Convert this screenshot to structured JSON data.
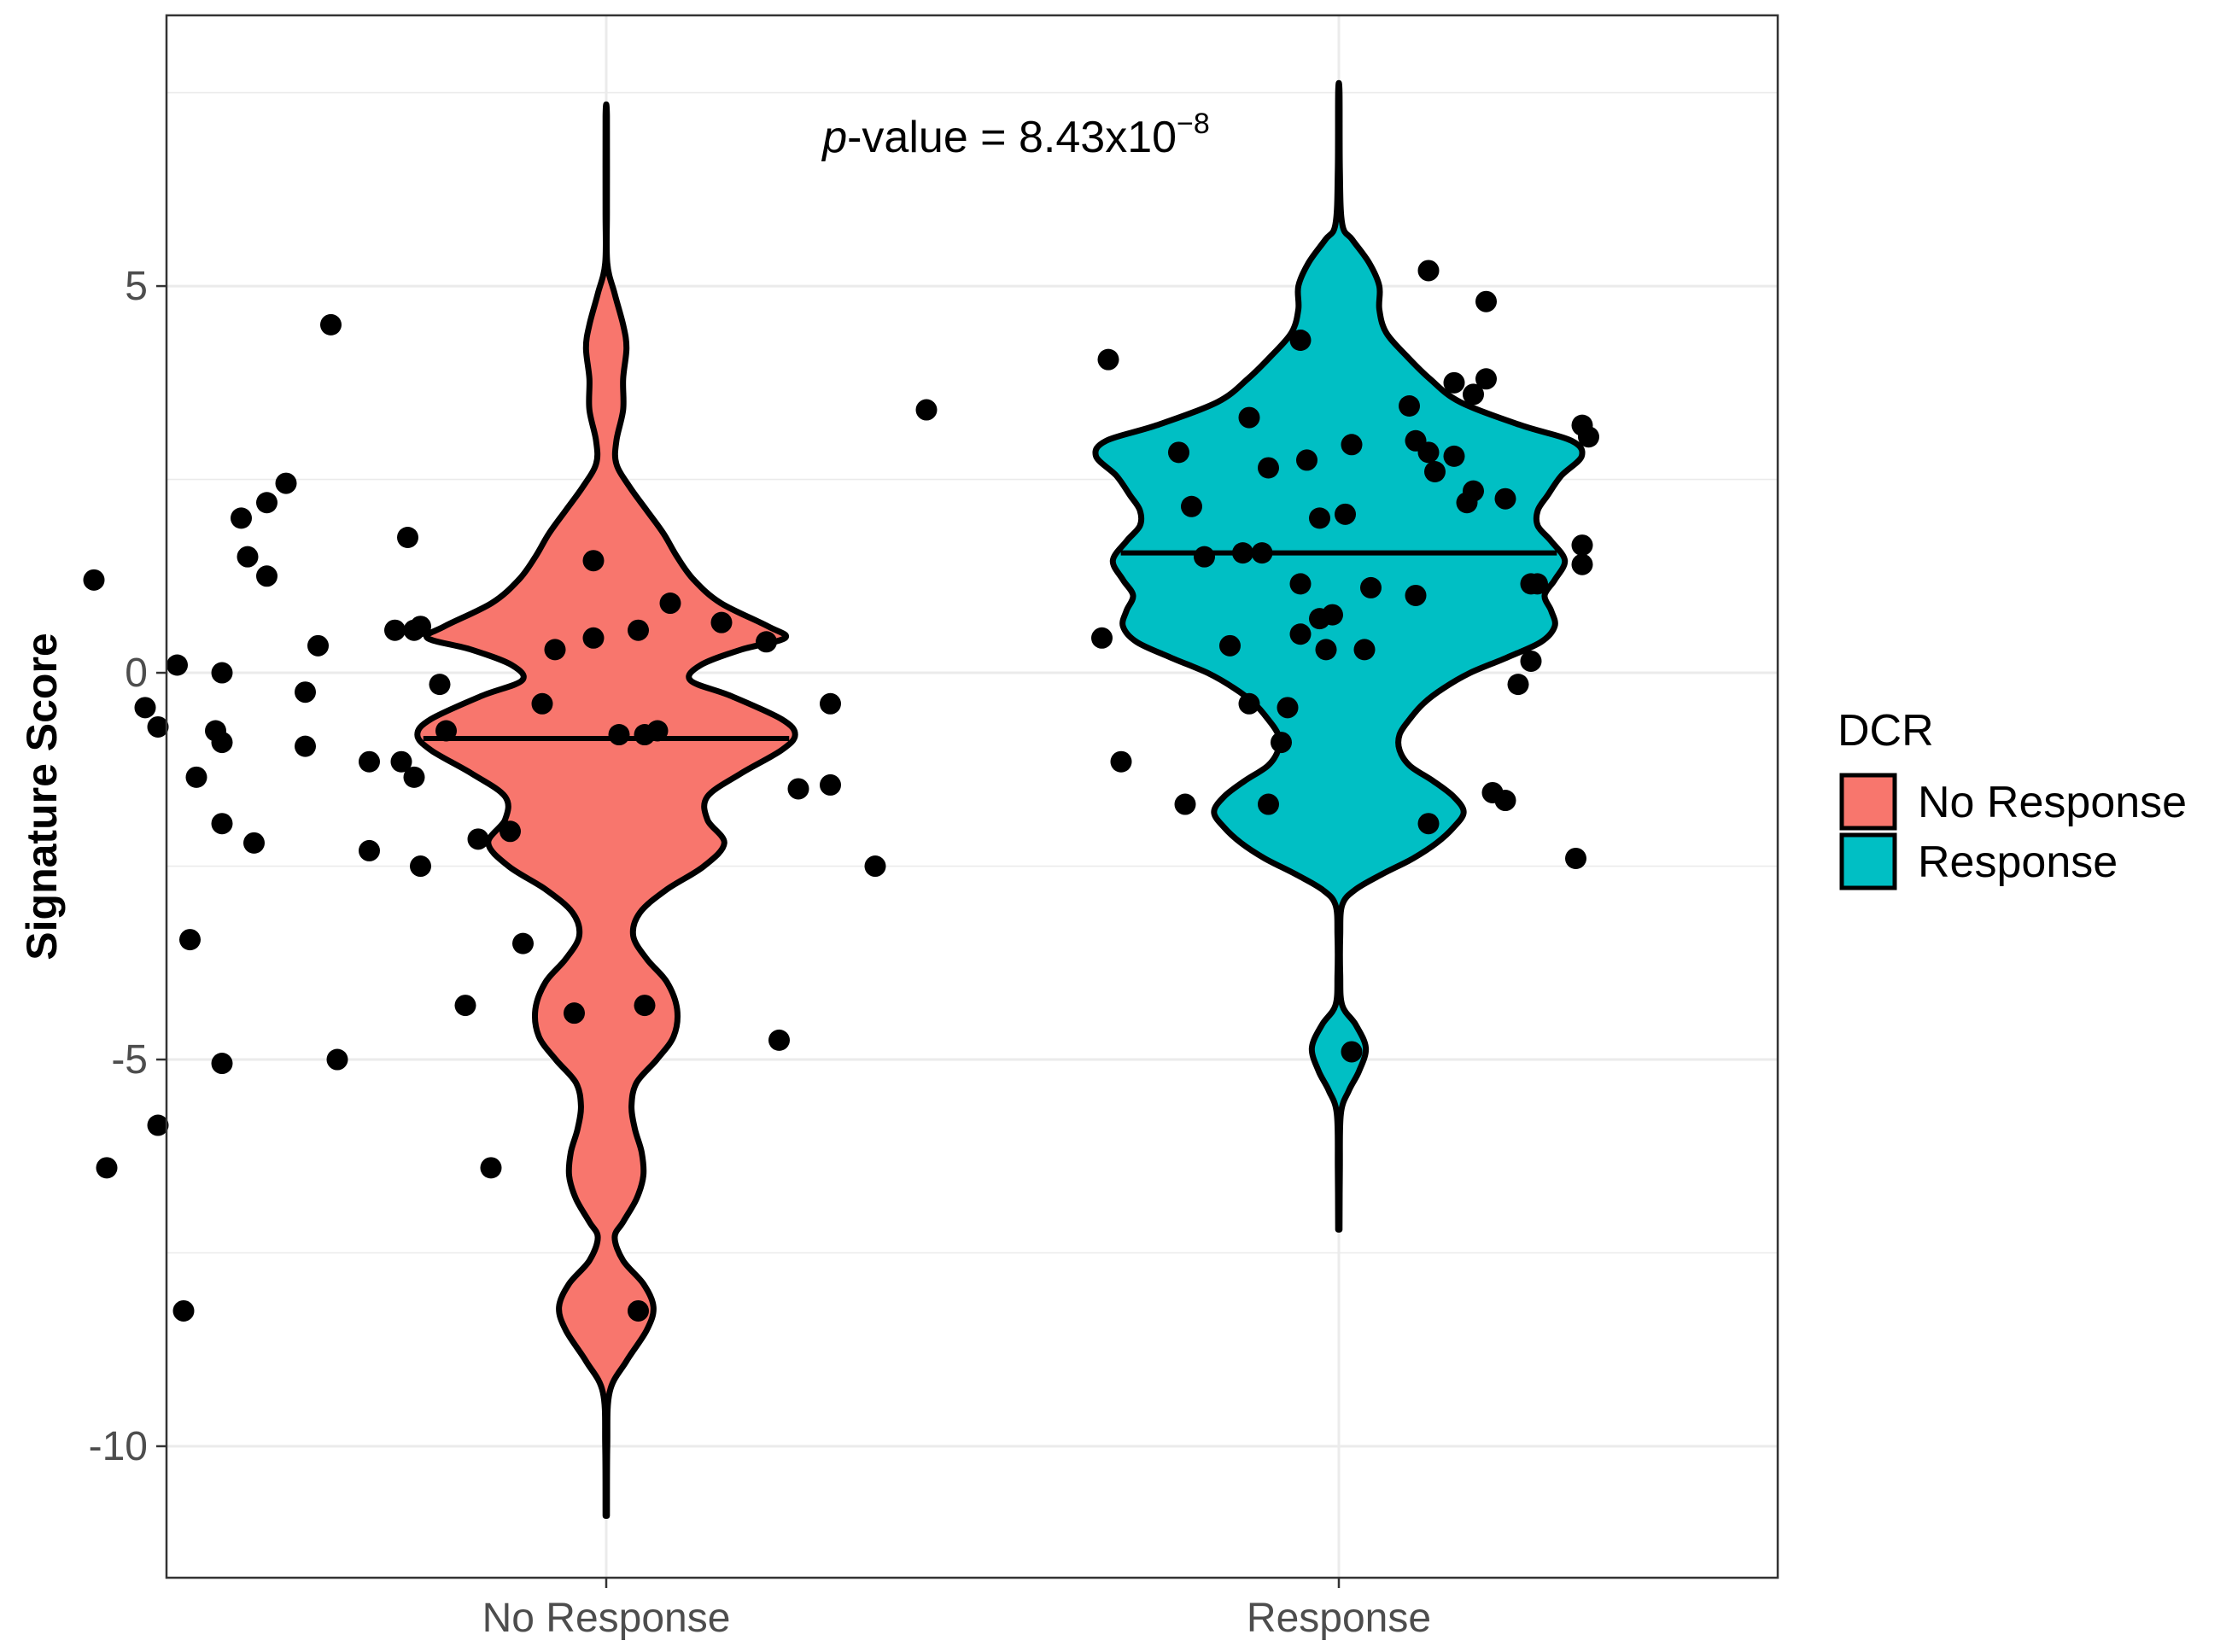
{
  "chart_data": {
    "type": "violin",
    "title": "",
    "xlabel": "",
    "ylabel": "Signature Score",
    "ylim": [
      -11.7,
      8.5
    ],
    "yticks": [
      -10,
      -5,
      0,
      5
    ],
    "ytick_labels": [
      "-10",
      "-5",
      "0",
      "5"
    ],
    "categories": [
      "No Response",
      "Response"
    ],
    "legend": {
      "title": "DCR",
      "position": "right",
      "entries": [
        {
          "label": "No Response",
          "color": "#F8766D"
        },
        {
          "label": "Response",
          "color": "#00BFC4"
        }
      ]
    },
    "annotation": {
      "italic": "p",
      "text": "-value = 8.43x10",
      "exponent": "−8"
    },
    "grid": true,
    "series": [
      {
        "name": "No Response",
        "color": "#F8766D",
        "median": -0.85,
        "density_profile": [
          [
            -10.9,
            0.002
          ],
          [
            -10.0,
            0.003
          ],
          [
            -9.3,
            0.01
          ],
          [
            -8.9,
            0.06
          ],
          [
            -8.5,
            0.12
          ],
          [
            -8.2,
            0.14
          ],
          [
            -7.9,
            0.11
          ],
          [
            -7.6,
            0.05
          ],
          [
            -7.3,
            0.025
          ],
          [
            -7.1,
            0.05
          ],
          [
            -6.8,
            0.09
          ],
          [
            -6.5,
            0.11
          ],
          [
            -6.2,
            0.105
          ],
          [
            -5.9,
            0.085
          ],
          [
            -5.6,
            0.075
          ],
          [
            -5.3,
            0.09
          ],
          [
            -5.0,
            0.15
          ],
          [
            -4.7,
            0.2
          ],
          [
            -4.35,
            0.21
          ],
          [
            -4.0,
            0.18
          ],
          [
            -3.7,
            0.12
          ],
          [
            -3.4,
            0.08
          ],
          [
            -3.1,
            0.1
          ],
          [
            -2.8,
            0.18
          ],
          [
            -2.5,
            0.29
          ],
          [
            -2.2,
            0.35
          ],
          [
            -1.9,
            0.3
          ],
          [
            -1.6,
            0.3
          ],
          [
            -1.3,
            0.4
          ],
          [
            -1.0,
            0.52
          ],
          [
            -0.8,
            0.56
          ],
          [
            -0.6,
            0.52
          ],
          [
            -0.3,
            0.37
          ],
          [
            -0.1,
            0.25
          ],
          [
            0.1,
            0.28
          ],
          [
            0.3,
            0.4
          ],
          [
            0.45,
            0.53
          ],
          [
            0.6,
            0.48
          ],
          [
            0.9,
            0.34
          ],
          [
            1.2,
            0.26
          ],
          [
            1.5,
            0.21
          ],
          [
            1.8,
            0.17
          ],
          [
            2.1,
            0.12
          ],
          [
            2.4,
            0.07
          ],
          [
            2.7,
            0.03
          ],
          [
            3.0,
            0.03
          ],
          [
            3.4,
            0.05
          ],
          [
            3.8,
            0.05
          ],
          [
            4.2,
            0.06
          ],
          [
            4.5,
            0.05
          ],
          [
            4.9,
            0.025
          ],
          [
            5.3,
            0.003
          ],
          [
            6.0,
            0.002
          ],
          [
            7.2,
            0.002
          ]
        ],
        "points": [
          [
            -0.8,
            1.2
          ],
          [
            -0.67,
            0.1
          ],
          [
            -0.6,
            0.0
          ],
          [
            -0.72,
            -0.45
          ],
          [
            -0.7,
            -0.7
          ],
          [
            -0.61,
            -0.75
          ],
          [
            -0.6,
            -0.9
          ],
          [
            -0.64,
            -1.35
          ],
          [
            -0.6,
            -1.95
          ],
          [
            -0.55,
            -2.2
          ],
          [
            -0.65,
            -3.45
          ],
          [
            -0.6,
            -5.05
          ],
          [
            -0.7,
            -5.85
          ],
          [
            -0.78,
            -6.4
          ],
          [
            -0.66,
            -8.25
          ],
          [
            -0.43,
            4.5
          ],
          [
            -0.5,
            2.45
          ],
          [
            -0.53,
            2.2
          ],
          [
            -0.57,
            2.0
          ],
          [
            -0.56,
            1.5
          ],
          [
            -0.53,
            1.25
          ],
          [
            -0.45,
            0.35
          ],
          [
            -0.47,
            -0.25
          ],
          [
            -0.47,
            -0.95
          ],
          [
            -0.37,
            -1.15
          ],
          [
            -0.37,
            -2.3
          ],
          [
            -0.33,
            0.55
          ],
          [
            -0.31,
            1.75
          ],
          [
            -0.3,
            0.55
          ],
          [
            -0.29,
            0.6
          ],
          [
            -0.32,
            -1.15
          ],
          [
            -0.3,
            -1.35
          ],
          [
            -0.29,
            -2.5
          ],
          [
            -0.26,
            -0.15
          ],
          [
            -0.25,
            -0.75
          ],
          [
            -0.2,
            -2.15
          ],
          [
            -0.22,
            -4.3
          ],
          [
            -0.42,
            -5.0
          ],
          [
            -0.1,
            -0.4
          ],
          [
            -0.02,
            1.45
          ],
          [
            -0.08,
            0.3
          ],
          [
            -0.02,
            0.45
          ],
          [
            0.02,
            -0.8
          ],
          [
            -0.15,
            -2.05
          ],
          [
            -0.13,
            -3.5
          ],
          [
            -0.18,
            -6.4
          ],
          [
            -0.05,
            -4.4
          ],
          [
            0.05,
            0.55
          ],
          [
            0.1,
            0.9
          ],
          [
            0.06,
            -0.8
          ],
          [
            0.18,
            0.65
          ],
          [
            0.08,
            -0.75
          ],
          [
            0.3,
            -1.5
          ],
          [
            0.25,
            0.4
          ],
          [
            0.35,
            -1.45
          ],
          [
            0.35,
            -0.4
          ],
          [
            0.27,
            -4.75
          ],
          [
            0.42,
            -2.5
          ],
          [
            0.5,
            3.4
          ],
          [
            0.06,
            -4.3
          ],
          [
            0.05,
            -8.25
          ]
        ]
      },
      {
        "name": "Response",
        "color": "#00BFC4",
        "median": 1.55,
        "density_profile": [
          [
            -7.2,
            0.002
          ],
          [
            -6.4,
            0.003
          ],
          [
            -5.7,
            0.006
          ],
          [
            -5.4,
            0.03
          ],
          [
            -5.15,
            0.06
          ],
          [
            -4.85,
            0.08
          ],
          [
            -4.55,
            0.05
          ],
          [
            -4.3,
            0.01
          ],
          [
            -3.9,
            0.004
          ],
          [
            -3.4,
            0.004
          ],
          [
            -3.0,
            0.01
          ],
          [
            -2.8,
            0.05
          ],
          [
            -2.6,
            0.13
          ],
          [
            -2.4,
            0.22
          ],
          [
            -2.2,
            0.29
          ],
          [
            -2.0,
            0.34
          ],
          [
            -1.8,
            0.37
          ],
          [
            -1.6,
            0.34
          ],
          [
            -1.4,
            0.28
          ],
          [
            -1.2,
            0.21
          ],
          [
            -1.0,
            0.18
          ],
          [
            -0.8,
            0.18
          ],
          [
            -0.6,
            0.21
          ],
          [
            -0.4,
            0.25
          ],
          [
            -0.2,
            0.31
          ],
          [
            0.0,
            0.39
          ],
          [
            0.2,
            0.5
          ],
          [
            0.4,
            0.6
          ],
          [
            0.6,
            0.64
          ],
          [
            0.8,
            0.63
          ],
          [
            1.0,
            0.61
          ],
          [
            1.2,
            0.64
          ],
          [
            1.45,
            0.67
          ],
          [
            1.7,
            0.63
          ],
          [
            1.9,
            0.59
          ],
          [
            2.1,
            0.59
          ],
          [
            2.3,
            0.62
          ],
          [
            2.55,
            0.66
          ],
          [
            2.8,
            0.72
          ],
          [
            3.0,
            0.69
          ],
          [
            3.2,
            0.54
          ],
          [
            3.5,
            0.36
          ],
          [
            3.8,
            0.27
          ],
          [
            4.1,
            0.2
          ],
          [
            4.4,
            0.14
          ],
          [
            4.7,
            0.12
          ],
          [
            5.0,
            0.12
          ],
          [
            5.3,
            0.09
          ],
          [
            5.6,
            0.04
          ],
          [
            5.8,
            0.01
          ],
          [
            6.5,
            0.003
          ],
          [
            7.5,
            0.002
          ]
        ],
        "points": [
          [
            -0.36,
            4.05
          ],
          [
            -0.37,
            0.45
          ],
          [
            -0.34,
            -1.15
          ],
          [
            -0.25,
            2.85
          ],
          [
            -0.23,
            2.15
          ],
          [
            -0.21,
            1.5
          ],
          [
            -0.24,
            -1.7
          ],
          [
            -0.15,
            1.55
          ],
          [
            -0.17,
            0.35
          ],
          [
            -0.14,
            -0.4
          ],
          [
            -0.14,
            3.3
          ],
          [
            -0.11,
            2.65
          ],
          [
            -0.12,
            1.55
          ],
          [
            -0.11,
            -1.7
          ],
          [
            -0.09,
            -0.9
          ],
          [
            -0.08,
            -0.45
          ],
          [
            -0.06,
            4.3
          ],
          [
            -0.06,
            1.15
          ],
          [
            -0.05,
            2.75
          ],
          [
            -0.03,
            0.7
          ],
          [
            -0.06,
            0.5
          ],
          [
            -0.03,
            2.0
          ],
          [
            -0.02,
            0.3
          ],
          [
            -0.01,
            0.75
          ],
          [
            0.01,
            2.05
          ],
          [
            0.02,
            2.95
          ],
          [
            0.04,
            0.3
          ],
          [
            0.05,
            1.1
          ],
          [
            0.12,
            3.0
          ],
          [
            0.14,
            2.85
          ],
          [
            0.12,
            1.0
          ],
          [
            0.11,
            3.45
          ],
          [
            0.14,
            5.2
          ],
          [
            0.14,
            -1.95
          ],
          [
            0.15,
            2.6
          ],
          [
            0.18,
            2.8
          ],
          [
            0.18,
            3.75
          ],
          [
            0.2,
            2.2
          ],
          [
            0.21,
            2.35
          ],
          [
            0.21,
            3.6
          ],
          [
            0.23,
            3.8
          ],
          [
            0.23,
            4.8
          ],
          [
            0.26,
            2.25
          ],
          [
            0.28,
            -0.15
          ],
          [
            0.24,
            -1.55
          ],
          [
            0.26,
            -1.65
          ],
          [
            0.3,
            1.15
          ],
          [
            0.31,
            1.15
          ],
          [
            0.3,
            0.15
          ],
          [
            0.38,
            1.65
          ],
          [
            0.38,
            1.4
          ],
          [
            0.38,
            3.2
          ],
          [
            0.39,
            3.05
          ],
          [
            0.37,
            -2.4
          ],
          [
            0.02,
            -4.9
          ]
        ]
      }
    ]
  }
}
